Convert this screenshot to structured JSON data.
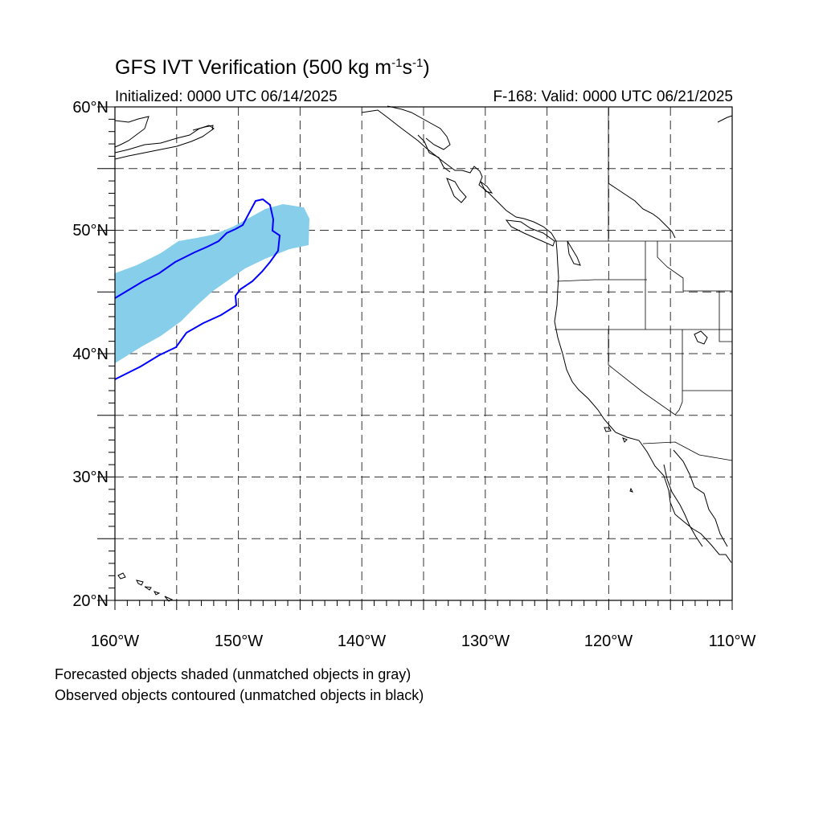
{
  "title": {
    "prefix": "GFS IVT Verification (500 kg m",
    "exp1": "-1",
    "mid": "s",
    "exp2": "-1",
    "suffix": ")"
  },
  "initialized": "Initialized: 0000 UTC 06/14/2025",
  "valid": "F-168: Valid: 0000 UTC 06/21/2025",
  "map": {
    "lon_range": [
      -160,
      -110
    ],
    "lat_range": [
      20,
      60
    ],
    "lat_ticks": [
      "20°N",
      "30°N",
      "40°N",
      "50°N",
      "60°N"
    ],
    "lon_ticks": [
      "160°W",
      "150°W",
      "140°W",
      "130°W",
      "120°W",
      "110°W"
    ],
    "grid_style": "dashed",
    "forecast_fill_color": "#87ceeb",
    "observed_contour_color": "#0000ff",
    "coastline_color": "#000000"
  },
  "notes": {
    "line1": "Forecasted objects shaded (unmatched objects in gray)",
    "line2": "Observed objects contoured (unmatched objects in black)"
  }
}
